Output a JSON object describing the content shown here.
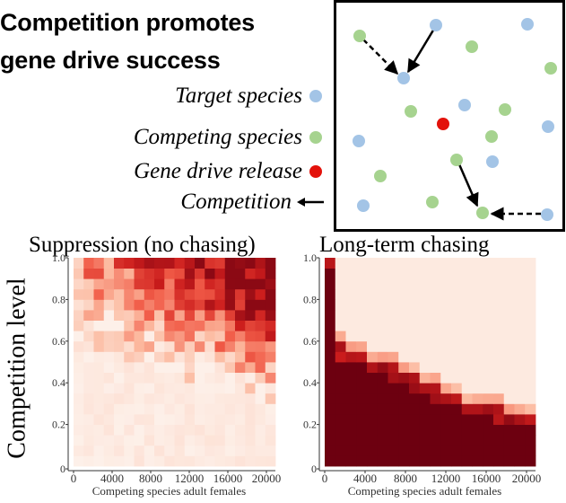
{
  "figure": {
    "title_line1": "Competition promotes",
    "title_line2": "gene drive success"
  },
  "legend": {
    "target": {
      "label": "Target species",
      "color": "#a3c4e6"
    },
    "competing": {
      "label": "Competing species",
      "color": "#a6d38f"
    },
    "release": {
      "label": "Gene drive release",
      "color": "#e3120b"
    },
    "competition": {
      "label": "Competition"
    }
  },
  "inset": {
    "target_dots": [
      [
        486,
        28
      ],
      [
        588,
        27
      ],
      [
        450,
        87
      ],
      [
        518,
        117
      ],
      [
        611,
        141
      ],
      [
        400,
        157
      ],
      [
        549,
        180
      ],
      [
        405,
        229
      ],
      [
        610,
        239
      ]
    ],
    "competing_dots": [
      [
        401,
        40
      ],
      [
        526,
        52
      ],
      [
        614,
        76
      ],
      [
        458,
        124
      ],
      [
        563,
        122
      ],
      [
        548,
        152
      ],
      [
        424,
        196
      ],
      [
        509,
        178
      ],
      [
        482,
        225
      ],
      [
        538,
        237
      ]
    ],
    "release_dots": [
      [
        494,
        138
      ]
    ]
  },
  "heatmaps": {
    "ylabel": "Competition level",
    "xlabel": "Competing species adult females",
    "x_ticks": [
      "0",
      "4000",
      "8000",
      "12000",
      "16000",
      "20000"
    ],
    "y_ticks": [
      "0",
      "0.2",
      "0.4",
      "0.6",
      "0.8",
      "1.0"
    ],
    "panels": [
      {
        "title": "Suppression (no chasing)"
      },
      {
        "title": "Long-term chasing"
      }
    ]
  },
  "chart_data": [
    {
      "type": "heatmap",
      "title": "Suppression (no chasing)",
      "xlabel": "Competing species adult females",
      "ylabel": "Competition level",
      "x_range": [
        0,
        20000
      ],
      "y_range": [
        0,
        1.0
      ],
      "grid": "20x20",
      "pattern": "Intensity increases with both competition level and competing species count; near zero below ~0.45 competition"
    },
    {
      "type": "heatmap",
      "title": "Long-term chasing",
      "xlabel": "Competing species adult females",
      "ylabel": "Competition level",
      "x_range": [
        0,
        20000
      ],
      "y_range": [
        0,
        1.0
      ],
      "grid": "20x20",
      "boundary_competition_level": [
        1.0,
        0.58,
        0.56,
        0.54,
        0.52,
        0.5,
        0.48,
        0.45,
        0.43,
        0.4,
        0.38,
        0.36,
        0.34,
        0.32,
        0.31,
        0.3,
        0.28,
        0.27,
        0.26,
        0.25
      ],
      "pattern": "Dark region below a decreasing boundary; pale above"
    }
  ]
}
